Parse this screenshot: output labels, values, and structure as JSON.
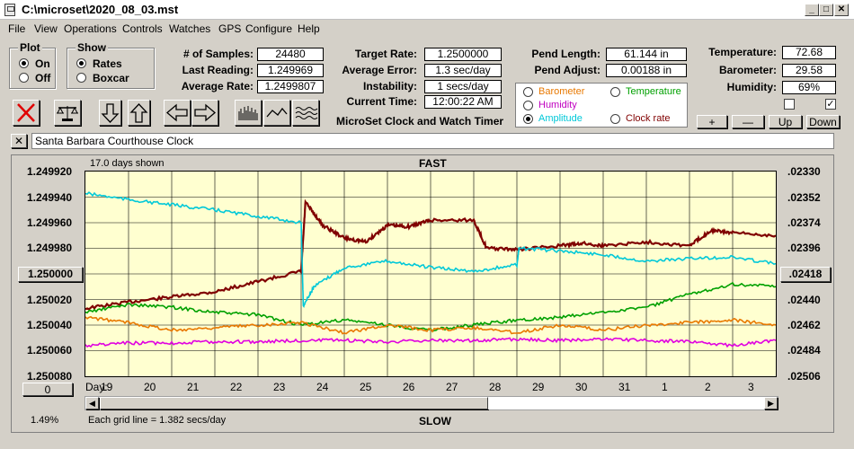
{
  "window": {
    "title": "C:\\microset\\2020_08_03.mst"
  },
  "menu": [
    "File",
    "View",
    "Operations",
    "Controls",
    "Watches",
    "GPS",
    "Configure",
    "Help"
  ],
  "plot_group": {
    "title": "Plot",
    "on": "On",
    "off": "Off",
    "selected": "On"
  },
  "show_group": {
    "title": "Show",
    "rates": "Rates",
    "boxcar": "Boxcar",
    "selected": "Rates"
  },
  "stats": {
    "samples_label": "# of Samples:",
    "samples": "24480",
    "last_label": "Last Reading:",
    "last": "1.249969",
    "avg_label": "Average Rate:",
    "avg": "1.2499807",
    "target_label": "Target Rate:",
    "target": "1.2500000",
    "avgerr_label": "Average Error:",
    "avgerr": "1.3 sec/day",
    "instab_label": "Instability:",
    "instab": "1 secs/day",
    "time_label": "Current Time:",
    "time": "12:00:22 AM",
    "pendlen_label": "Pend Length:",
    "pendlen": "61.144 in",
    "pendadj_label": "Pend Adjust:",
    "pendadj": "0.00188 in",
    "temp_label": "Temperature:",
    "temp": "72.68",
    "baro_label": "Barometer:",
    "baro": "29.58",
    "hum_label": "Humidity:",
    "hum": "69%"
  },
  "app_name": "MicroSet Clock and Watch Timer",
  "options": {
    "barometer": "Barometer",
    "temperature": "Temperature",
    "humidity": "Humidity",
    "amplitude": "Amplitude",
    "clockrate": "Clock rate",
    "selected": "Amplitude"
  },
  "option_colors": {
    "barometer": "#e87800",
    "temperature": "#00a000",
    "humidity": "#c000c0",
    "amplitude": "#00c8d8",
    "clockrate": "#800000"
  },
  "adjust_buttons": {
    "plus": "+",
    "minus": "—",
    "up": "Up",
    "down": "Down"
  },
  "checkboxes": {
    "left": false,
    "right": true
  },
  "watch_name": "Santa Barbara Courthouse Clock",
  "close_x": "✕",
  "graph": {
    "days_shown": "17.0 days shown",
    "fast": "FAST",
    "slow": "SLOW",
    "grid_note": "Each grid line = 1.382 secs/day",
    "left_percent": "1.49%",
    "left_axis": [
      "1.249920",
      "1.249940",
      "1.249960",
      "1.249980",
      "1.250000",
      "1.250020",
      "1.250040",
      "1.250060",
      "1.250080"
    ],
    "right_axis": [
      ".02330",
      ".02352",
      ".02374",
      ".02396",
      ".02418",
      ".02440",
      ".02462",
      ".02484",
      ".02506"
    ],
    "left_center_button": "1.250000",
    "right_center_button": ".02418",
    "bottom_left_button": "0",
    "day_label": "Day:",
    "days": [
      "19",
      "20",
      "21",
      "22",
      "23",
      "24",
      "25",
      "26",
      "27",
      "28",
      "29",
      "30",
      "31",
      "1",
      "2",
      "3"
    ]
  },
  "chart_data": {
    "type": "line",
    "title": "FAST",
    "xlabel": "Day:",
    "ylabel": "",
    "x_label": "Day",
    "ylim": [
      1.25008,
      1.24992
    ],
    "series": [
      {
        "color": "#800000",
        "x": [
          0,
          1,
          2,
          3,
          4,
          5,
          5.1,
          5.5,
          6,
          6.5,
          7,
          7.5,
          8,
          9,
          9.3,
          10,
          11,
          11.5,
          12,
          13,
          14,
          14.5,
          15,
          16
        ],
        "values": [
          1.250027,
          1.250022,
          1.250018,
          1.250014,
          1.250006,
          1.249998,
          1.249944,
          1.249962,
          1.249972,
          1.249975,
          1.249962,
          1.249963,
          1.249958,
          1.249958,
          1.24998,
          1.249981,
          1.249978,
          1.249976,
          1.249978,
          1.249975,
          1.249978,
          1.249966,
          1.249968,
          1.24997
        ]
      },
      {
        "color": "#00c8d8",
        "x": [
          0,
          1,
          2,
          3,
          4,
          5,
          5.05,
          5.3,
          6,
          7,
          8,
          9,
          10,
          10.05,
          11,
          12,
          13,
          14,
          15,
          16
        ],
        "values": [
          1.249937,
          1.249942,
          1.249946,
          1.24995,
          1.249955,
          1.24996,
          1.250025,
          1.25001,
          1.249995,
          1.24999,
          1.249995,
          1.249998,
          1.249993,
          1.24998,
          1.249982,
          1.249985,
          1.24999,
          1.249988,
          1.249987,
          1.249992
        ]
      },
      {
        "color": "#00a000",
        "x": [
          0,
          1,
          2,
          3,
          4,
          5,
          6,
          7,
          8,
          9,
          10,
          11,
          12,
          13,
          14,
          15,
          16
        ],
        "values": [
          1.25003,
          1.250024,
          1.250026,
          1.25003,
          1.250032,
          1.25004,
          1.250036,
          1.25004,
          1.250044,
          1.25004,
          1.250036,
          1.250034,
          1.25003,
          1.250026,
          1.250016,
          1.250008,
          1.25001
        ]
      },
      {
        "color": "#e87800",
        "x": [
          0,
          1,
          2,
          3,
          4,
          5,
          6,
          7,
          8,
          9,
          10,
          11,
          12,
          13,
          14,
          15,
          16
        ],
        "values": [
          1.250034,
          1.250038,
          1.250044,
          1.250042,
          1.25004,
          1.250038,
          1.250046,
          1.25004,
          1.250044,
          1.250042,
          1.250046,
          1.25004,
          1.250044,
          1.25004,
          1.250038,
          1.250036,
          1.25004
        ]
      },
      {
        "color": "#e000e0",
        "x": [
          0,
          1,
          2,
          3,
          4,
          5,
          6,
          7,
          8,
          9,
          10,
          11,
          12,
          13,
          14,
          15,
          16
        ],
        "values": [
          1.250056,
          1.250054,
          1.250054,
          1.250053,
          1.250053,
          1.250052,
          1.250052,
          1.250053,
          1.250052,
          1.250052,
          1.250051,
          1.250052,
          1.250051,
          1.250052,
          1.250053,
          1.250056,
          1.250052
        ]
      }
    ]
  }
}
